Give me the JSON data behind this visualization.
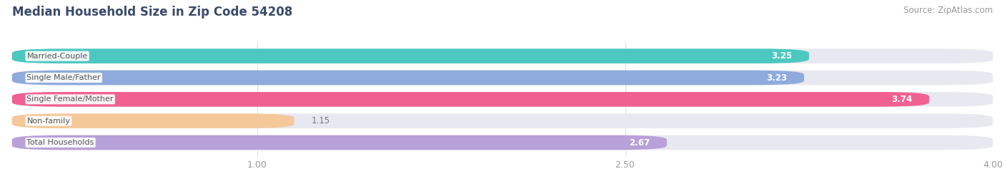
{
  "title": "Median Household Size in Zip Code 54208",
  "source": "Source: ZipAtlas.com",
  "categories": [
    "Married-Couple",
    "Single Male/Father",
    "Single Female/Mother",
    "Non-family",
    "Total Households"
  ],
  "values": [
    3.25,
    3.23,
    3.74,
    1.15,
    2.67
  ],
  "bar_colors": [
    "#4dc8c0",
    "#8faadc",
    "#f06090",
    "#f5c89a",
    "#b8a0d8"
  ],
  "bar_bg_color": "#e8e8f0",
  "xlim": [
    0.0,
    4.0
  ],
  "xstart": 0.0,
  "xticks": [
    1.0,
    2.5,
    4.0
  ],
  "label_color": "#999999",
  "title_color": "#3a4a6b",
  "source_color": "#999999",
  "bg_color": "#ffffff",
  "figsize": [
    14.06,
    2.68
  ],
  "dpi": 100,
  "bar_height": 0.68,
  "bar_gap": 0.32
}
